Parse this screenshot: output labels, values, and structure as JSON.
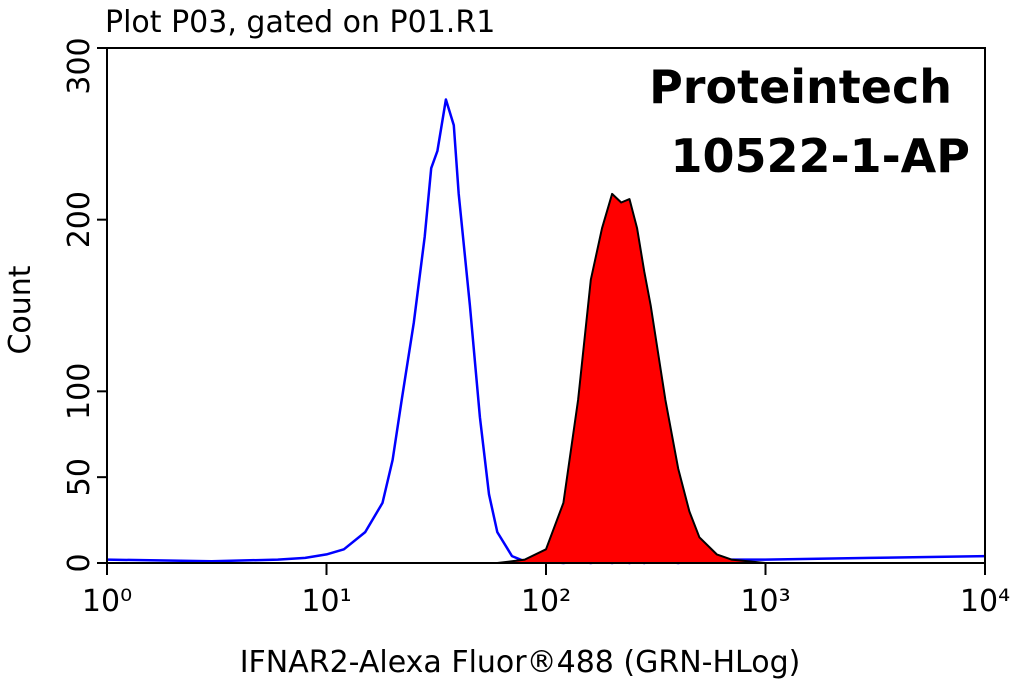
{
  "chart_data": {
    "type": "histogram-overlay",
    "title": "Plot P03, gated on P01.R1",
    "annotations": [
      "Proteintech",
      "10522-1-AP"
    ],
    "x_label": "IFNAR2-Alexa Fluor®488 (GRN-HLog)",
    "y_label": "Count",
    "x_scale": "log",
    "xlim": [
      1,
      10000
    ],
    "xticks": [
      {
        "value": 1,
        "label": "10⁰"
      },
      {
        "value": 10,
        "label": "10¹"
      },
      {
        "value": 100,
        "label": "10²"
      },
      {
        "value": 1000,
        "label": "10³"
      },
      {
        "value": 10000,
        "label": "10⁴"
      }
    ],
    "ylim": [
      0,
      300
    ],
    "yticks": [
      0,
      50,
      100,
      200,
      300
    ],
    "x": [
      1,
      3,
      6,
      8,
      10,
      12,
      15,
      18,
      20,
      22,
      25,
      28,
      30,
      32,
      35,
      38,
      40,
      45,
      50,
      55,
      60,
      70,
      80,
      100,
      120,
      140,
      160,
      180,
      200,
      220,
      240,
      260,
      280,
      300,
      350,
      400,
      450,
      500,
      600,
      700,
      1000,
      3000,
      10000
    ],
    "series": [
      {
        "color": "#0000ff",
        "fill": false,
        "values": [
          2,
          1,
          2,
          3,
          5,
          8,
          18,
          35,
          60,
          95,
          140,
          190,
          230,
          240,
          270,
          255,
          215,
          150,
          85,
          40,
          18,
          4,
          1,
          1,
          0,
          1,
          0,
          1,
          0,
          1,
          0,
          1,
          0,
          1,
          1,
          0,
          1,
          2,
          1,
          2,
          2,
          3,
          4
        ]
      },
      {
        "color": "#ff0000",
        "fill": true,
        "values": [
          0,
          0,
          0,
          0,
          0,
          0,
          0,
          0,
          0,
          0,
          0,
          0,
          0,
          0,
          0,
          0,
          0,
          0,
          0,
          0,
          0,
          1,
          2,
          8,
          35,
          95,
          165,
          195,
          215,
          210,
          212,
          195,
          170,
          150,
          95,
          55,
          30,
          15,
          5,
          2,
          0,
          0,
          0
        ]
      }
    ]
  }
}
